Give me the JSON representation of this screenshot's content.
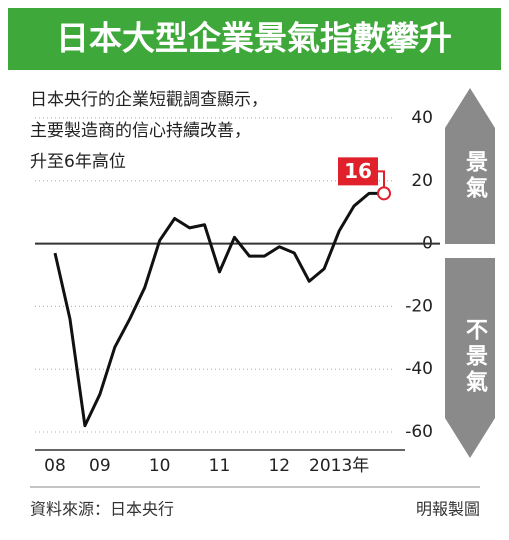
{
  "chart_data": {
    "type": "line",
    "title": "日本大型企業景氣指數攀升",
    "subtitle": [
      "日本央行的企業短觀調查顯示，",
      "主要製造商的信心持續改善，",
      "升至6年高位"
    ],
    "categories": [
      "08",
      null,
      null,
      "09",
      null,
      null,
      null,
      "10",
      null,
      null,
      null,
      "11",
      null,
      null,
      null,
      "12",
      null,
      null,
      null,
      "2013年",
      null,
      null,
      null
    ],
    "series": [
      {
        "name": "景氣指數",
        "color": "#111111",
        "values": [
          -3,
          -24,
          -58,
          -48,
          -33,
          -24,
          -14,
          1,
          8,
          5,
          6,
          -9,
          2,
          -4,
          -4,
          -1,
          -3,
          -12,
          -8,
          4,
          12,
          16,
          16
        ]
      }
    ],
    "ylim": [
      -60,
      40
    ],
    "yticks": [
      -60,
      -40,
      -20,
      0,
      20,
      40
    ],
    "grid": true,
    "highlight_color": "#e0202a",
    "side_labels": {
      "up": "景氣",
      "down": "不景氣"
    },
    "source": "資料來源：日本央行",
    "credit": "明報製圖"
  }
}
